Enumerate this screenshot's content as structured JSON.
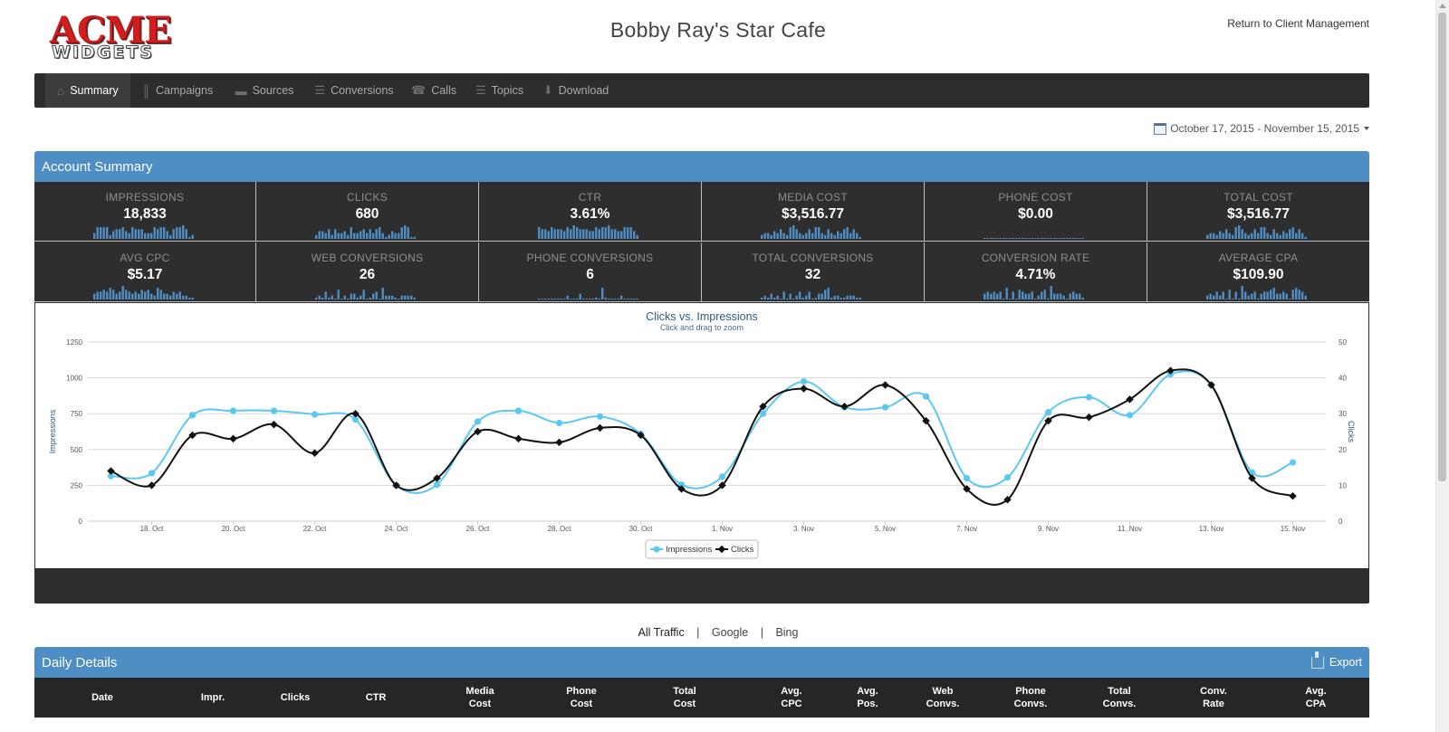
{
  "brand": {
    "line1": "ACME",
    "line2": "WIDGETS"
  },
  "site_title": "Bobby Ray's Star Cafe",
  "return_link": "Return to Client Management",
  "nav": [
    {
      "label": "Summary",
      "icon": "home-icon",
      "glyph": "⌂",
      "active": true
    },
    {
      "label": "Campaigns",
      "icon": "signal-icon",
      "glyph": "║",
      "active": false
    },
    {
      "label": "Sources",
      "icon": "car-icon",
      "glyph": "▬",
      "active": false
    },
    {
      "label": "Conversions",
      "icon": "cart-icon",
      "glyph": "☰",
      "active": false
    },
    {
      "label": "Calls",
      "icon": "phone-icon",
      "glyph": "☎",
      "active": false
    },
    {
      "label": "Topics",
      "icon": "list-icon",
      "glyph": "☰",
      "active": false
    },
    {
      "label": "Download",
      "icon": "download-icon",
      "glyph": "⬇",
      "active": false
    }
  ],
  "date_range": "October 17, 2015 - November 15, 2015",
  "account_summary": {
    "title": "Account Summary",
    "stats": [
      {
        "label": "IMPRESSIONS",
        "value": "18,833",
        "spark": [
          3,
          6,
          6,
          6,
          6,
          2,
          4,
          5,
          5,
          6,
          4,
          3,
          6,
          5,
          5,
          5,
          3,
          3,
          3,
          6,
          5,
          6,
          6,
          4,
          2,
          5,
          6,
          6,
          7,
          5,
          1,
          2
        ]
      },
      {
        "label": "CLICKS",
        "value": "680",
        "spark": [
          2,
          4,
          4,
          3,
          5,
          2,
          5,
          3,
          3,
          4,
          2,
          6,
          3,
          3,
          4,
          5,
          3,
          5,
          3,
          5,
          6,
          3,
          1,
          2,
          4,
          3,
          3,
          6,
          7,
          6,
          1,
          1
        ]
      },
      {
        "label": "CTR",
        "value": "3.61%",
        "spark": [
          6,
          5,
          5,
          4,
          6,
          5,
          5,
          5,
          4,
          6,
          5,
          7,
          6,
          5,
          5,
          5,
          4,
          4,
          6,
          5,
          6,
          6,
          7,
          5,
          5,
          4,
          4,
          6,
          6,
          6,
          4,
          2
        ]
      },
      {
        "label": "MEDIA COST",
        "value": "$3,516.77",
        "spark": [
          2,
          3,
          3,
          2,
          4,
          3,
          5,
          3,
          2,
          6,
          7,
          5,
          3,
          2,
          3,
          5,
          3,
          6,
          6,
          3,
          2,
          5,
          3,
          2,
          4,
          3,
          5,
          6,
          3,
          5,
          3,
          1
        ]
      },
      {
        "label": "PHONE COST",
        "value": "$0.00",
        "spark": [
          0,
          0,
          0,
          0,
          0,
          0,
          0,
          0,
          0,
          0,
          0,
          0,
          0,
          0,
          0,
          0,
          0,
          0,
          0,
          0,
          0,
          0,
          0,
          0,
          0,
          0,
          0,
          0,
          0,
          0,
          0,
          0
        ]
      },
      {
        "label": "TOTAL COST",
        "value": "$3,516.77",
        "spark": [
          2,
          3,
          3,
          2,
          4,
          3,
          5,
          3,
          2,
          6,
          7,
          5,
          3,
          2,
          3,
          5,
          3,
          6,
          6,
          3,
          2,
          5,
          3,
          2,
          4,
          3,
          5,
          6,
          3,
          5,
          3,
          1
        ]
      },
      {
        "label": "AVG CPC",
        "value": "$5.17",
        "spark": [
          3,
          4,
          4,
          5,
          4,
          6,
          5,
          3,
          4,
          7,
          5,
          4,
          3,
          4,
          3,
          5,
          4,
          5,
          3,
          2,
          6,
          5,
          3,
          3,
          2,
          4,
          3,
          4,
          2,
          2,
          1,
          1
        ]
      },
      {
        "label": "WEB CONVERSIONS",
        "value": "26",
        "spark": [
          1,
          2,
          1,
          4,
          1,
          2,
          0,
          5,
          0,
          2,
          0,
          3,
          3,
          1,
          2,
          5,
          0,
          1,
          3,
          4,
          0,
          6,
          2,
          2,
          2,
          1,
          0,
          2,
          2,
          2,
          2,
          1
        ]
      },
      {
        "label": "PHONE CONVERSIONS",
        "value": "6",
        "spark": [
          0,
          0,
          0,
          0,
          0,
          0,
          0,
          0,
          0,
          2,
          0,
          0,
          0,
          3,
          0,
          0,
          0,
          0,
          1,
          0,
          6,
          1,
          0,
          0,
          0,
          0,
          2,
          0,
          0,
          0,
          0,
          0
        ]
      },
      {
        "label": "TOTAL CONVERSIONS",
        "value": "32",
        "spark": [
          1,
          2,
          1,
          3,
          1,
          2,
          0,
          4,
          0,
          3,
          0,
          2,
          4,
          1,
          2,
          4,
          0,
          1,
          3,
          3,
          5,
          6,
          1,
          2,
          2,
          1,
          1,
          2,
          2,
          2,
          1,
          1
        ]
      },
      {
        "label": "CONVERSION RATE",
        "value": "4.71%",
        "spark": [
          3,
          4,
          3,
          4,
          3,
          4,
          0,
          6,
          0,
          4,
          0,
          5,
          4,
          3,
          3,
          4,
          0,
          2,
          4,
          5,
          0,
          7,
          3,
          3,
          3,
          2,
          0,
          3,
          4,
          3,
          3,
          1
        ]
      },
      {
        "label": "AVERAGE CPA",
        "value": "$109.90",
        "spark": [
          2,
          3,
          2,
          4,
          2,
          4,
          0,
          5,
          0,
          4,
          0,
          7,
          4,
          2,
          3,
          4,
          0,
          3,
          4,
          4,
          5,
          6,
          3,
          3,
          4,
          3,
          0,
          5,
          6,
          5,
          4,
          2
        ]
      }
    ]
  },
  "chart_data": {
    "type": "line",
    "title": "Clicks vs. Impressions",
    "subtitle": "Click and drag to zoom",
    "ylabel": "Impressions",
    "y2label": "Clicks",
    "ylim": [
      0,
      1250
    ],
    "y2lim": [
      0,
      50
    ],
    "yticks": [
      "0",
      "250",
      "500",
      "750",
      "1000",
      "1250"
    ],
    "y2ticks": [
      "0",
      "10",
      "20",
      "30",
      "40",
      "50"
    ],
    "x": [
      "17. Oct",
      "18. Oct",
      "19. Oct",
      "20. Oct",
      "21. Oct",
      "22. Oct",
      "23. Oct",
      "24. Oct",
      "25. Oct",
      "26. Oct",
      "27. Oct",
      "28. Oct",
      "29. Oct",
      "30. Oct",
      "31. Oct",
      "1. Nov",
      "2. Nov",
      "3. Nov",
      "4. Nov",
      "5. Nov",
      "6. Nov",
      "7. Nov",
      "8. Nov",
      "9. Nov",
      "10. Nov",
      "11. Nov",
      "12. Nov",
      "13. Nov",
      "14. Nov",
      "15. Nov"
    ],
    "xtick_labels": [
      "18. Oct",
      "20. Oct",
      "22. Oct",
      "24. Oct",
      "26. Oct",
      "28. Oct",
      "30. Oct",
      "1. Nov",
      "3. Nov",
      "5. Nov",
      "7. Nov",
      "9. Nov",
      "11. Nov",
      "13. Nov",
      "15. Nov"
    ],
    "series": [
      {
        "name": "Impressions",
        "axis": "left",
        "color": "#5bc8ef",
        "values": [
          315,
          335,
          740,
          770,
          770,
          745,
          710,
          250,
          255,
          695,
          770,
          685,
          730,
          610,
          255,
          310,
          750,
          975,
          795,
          795,
          870,
          300,
          305,
          760,
          865,
          740,
          1025,
          950,
          340,
          410
        ]
      },
      {
        "name": "Clicks",
        "axis": "right",
        "color": "#111111",
        "values": [
          14,
          10,
          24,
          23,
          27,
          19,
          30,
          10,
          12,
          25,
          23,
          22,
          26,
          24,
          9,
          10,
          32,
          37,
          32,
          38,
          28,
          9,
          6,
          28,
          29,
          34,
          42,
          38,
          12,
          7
        ]
      }
    ],
    "legend": "bottom-center",
    "grid": true
  },
  "traffic_filters": {
    "all": "All Traffic",
    "google": "Google",
    "bing": "Bing",
    "sep": "|"
  },
  "daily_details": {
    "title": "Daily Details",
    "export_label": "Export",
    "columns": [
      {
        "line1": "Date",
        "line2": ""
      },
      {
        "line1": "Impr.",
        "line2": ""
      },
      {
        "line1": "Clicks",
        "line2": ""
      },
      {
        "line1": "CTR",
        "line2": ""
      },
      {
        "line1": "Media",
        "line2": "Cost"
      },
      {
        "line1": "Phone",
        "line2": "Cost"
      },
      {
        "line1": "Total",
        "line2": "Cost"
      },
      {
        "line1": "Avg.",
        "line2": "CPC"
      },
      {
        "line1": "Avg.",
        "line2": "Pos."
      },
      {
        "line1": "Web",
        "line2": "Convs."
      },
      {
        "line1": "Phone",
        "line2": "Convs."
      },
      {
        "line1": "Total",
        "line2": "Convs."
      },
      {
        "line1": "Conv.",
        "line2": "Rate"
      },
      {
        "line1": "Avg.",
        "line2": "CPA"
      }
    ]
  },
  "colors": {
    "accent": "#4f8ec4",
    "nav_bg": "#2d2d2d",
    "tile_bg": "#2e2e2e",
    "spark": "#4f8ec4",
    "brand_red": "#d01e1e"
  }
}
